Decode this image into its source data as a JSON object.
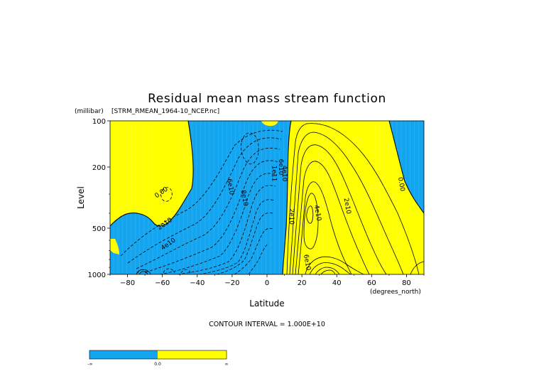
{
  "chart_data": {
    "type": "contour",
    "title": "Residual mean mass stream function",
    "subtitle": "[STRM_RMEAN_1964-10_NCEP.nc]",
    "xlabel": "Latitude",
    "x_units": "(degrees_north)",
    "ylabel": "Level",
    "y_units": "(millibar)",
    "y_scale": "log",
    "y_reversed": true,
    "xlim": [
      -90,
      90
    ],
    "ylim": [
      1000,
      100
    ],
    "x_ticks": [
      -80,
      -60,
      -40,
      -20,
      0,
      20,
      40,
      60,
      80
    ],
    "y_ticks": [
      100,
      200,
      500,
      1000
    ],
    "contour_interval_text": "CONTOUR INTERVAL = 1.000E+10",
    "fill_colors": {
      "negative": "#14a5f0",
      "positive": "#ffff00"
    },
    "colorbar": {
      "labels": [
        "-∞",
        "0.0",
        "∞"
      ],
      "colors": [
        "#14a5f0",
        "#ffff00"
      ]
    },
    "contour_labels": [
      {
        "text": "0.00",
        "x": -60,
        "y": 300
      },
      {
        "text": "2e10",
        "x": -58,
        "y": 480
      },
      {
        "text": "4e10",
        "x": -56,
        "y": 650
      },
      {
        "text": "6e10",
        "x": -22,
        "y": 270
      },
      {
        "text": "8e10",
        "x": -14,
        "y": 320
      },
      {
        "text": "1e11",
        "x": 3,
        "y": 220
      },
      {
        "text": "6e10",
        "x": 7,
        "y": 200
      },
      {
        "text": "4e10",
        "x": 9,
        "y": 220
      },
      {
        "text": "2e10",
        "x": 13,
        "y": 420
      },
      {
        "text": "4e10",
        "x": 28,
        "y": 400
      },
      {
        "text": "2e10",
        "x": 45,
        "y": 360
      },
      {
        "text": "6e10",
        "x": 22,
        "y": 840
      },
      {
        "text": "0.00",
        "x": 76,
        "y": 260
      }
    ]
  }
}
